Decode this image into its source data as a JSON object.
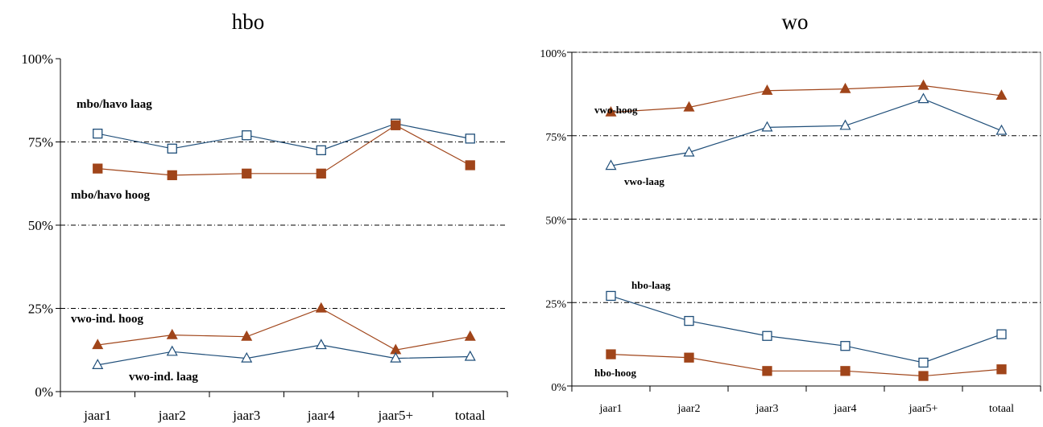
{
  "chart_data": [
    {
      "type": "line",
      "title": "hbo",
      "categories": [
        "jaar1",
        "jaar2",
        "jaar3",
        "jaar4",
        "jaar5+",
        "totaal"
      ],
      "yticks": [
        "0%",
        "25%",
        "50%",
        "75%",
        "100%"
      ],
      "ylim": [
        0,
        100
      ],
      "grid": "dash-dot at 25%, 50%, 75%",
      "series": [
        {
          "name": "mbo/havo laag",
          "marker": "open-square",
          "color": "#1f4e79",
          "values": [
            77.5,
            73,
            77,
            72.5,
            80.5,
            76
          ]
        },
        {
          "name": "mbo/havo hoog",
          "marker": "filled-square",
          "color": "#a0451a",
          "values": [
            67,
            65,
            65.5,
            65.5,
            80,
            68
          ]
        },
        {
          "name": "vwo-ind. hoog",
          "marker": "filled-triangle",
          "color": "#a0451a",
          "values": [
            14,
            17,
            16.5,
            25,
            12.5,
            16.5
          ]
        },
        {
          "name": "vwo-ind. laag",
          "marker": "open-triangle",
          "color": "#1f4e79",
          "values": [
            8,
            12,
            10,
            14,
            10,
            10.5
          ]
        }
      ]
    },
    {
      "type": "line",
      "title": "wo",
      "categories": [
        "jaar1",
        "jaar2",
        "jaar3",
        "jaar4",
        "jaar5+",
        "totaal"
      ],
      "yticks": [
        "0%",
        "25%",
        "50%",
        "75%",
        "100%"
      ],
      "ylim": [
        0,
        100
      ],
      "grid": "dash-dot at 25%, 50%, 75%, 100%",
      "series": [
        {
          "name": "vwo-hoog",
          "marker": "filled-triangle",
          "color": "#a0451a",
          "values": [
            82,
            83.5,
            88.5,
            89,
            90,
            87
          ]
        },
        {
          "name": "vwo-laag",
          "marker": "open-triangle",
          "color": "#1f4e79",
          "values": [
            66,
            70,
            77.5,
            78,
            86,
            76.5
          ]
        },
        {
          "name": "hbo-laag",
          "marker": "open-square",
          "color": "#1f4e79",
          "values": [
            27,
            19.5,
            15,
            12,
            7,
            15.5
          ]
        },
        {
          "name": "hbo-hoog",
          "marker": "filled-square",
          "color": "#a0451a",
          "values": [
            9.5,
            8.5,
            4.5,
            4.5,
            3,
            5
          ]
        }
      ]
    }
  ]
}
